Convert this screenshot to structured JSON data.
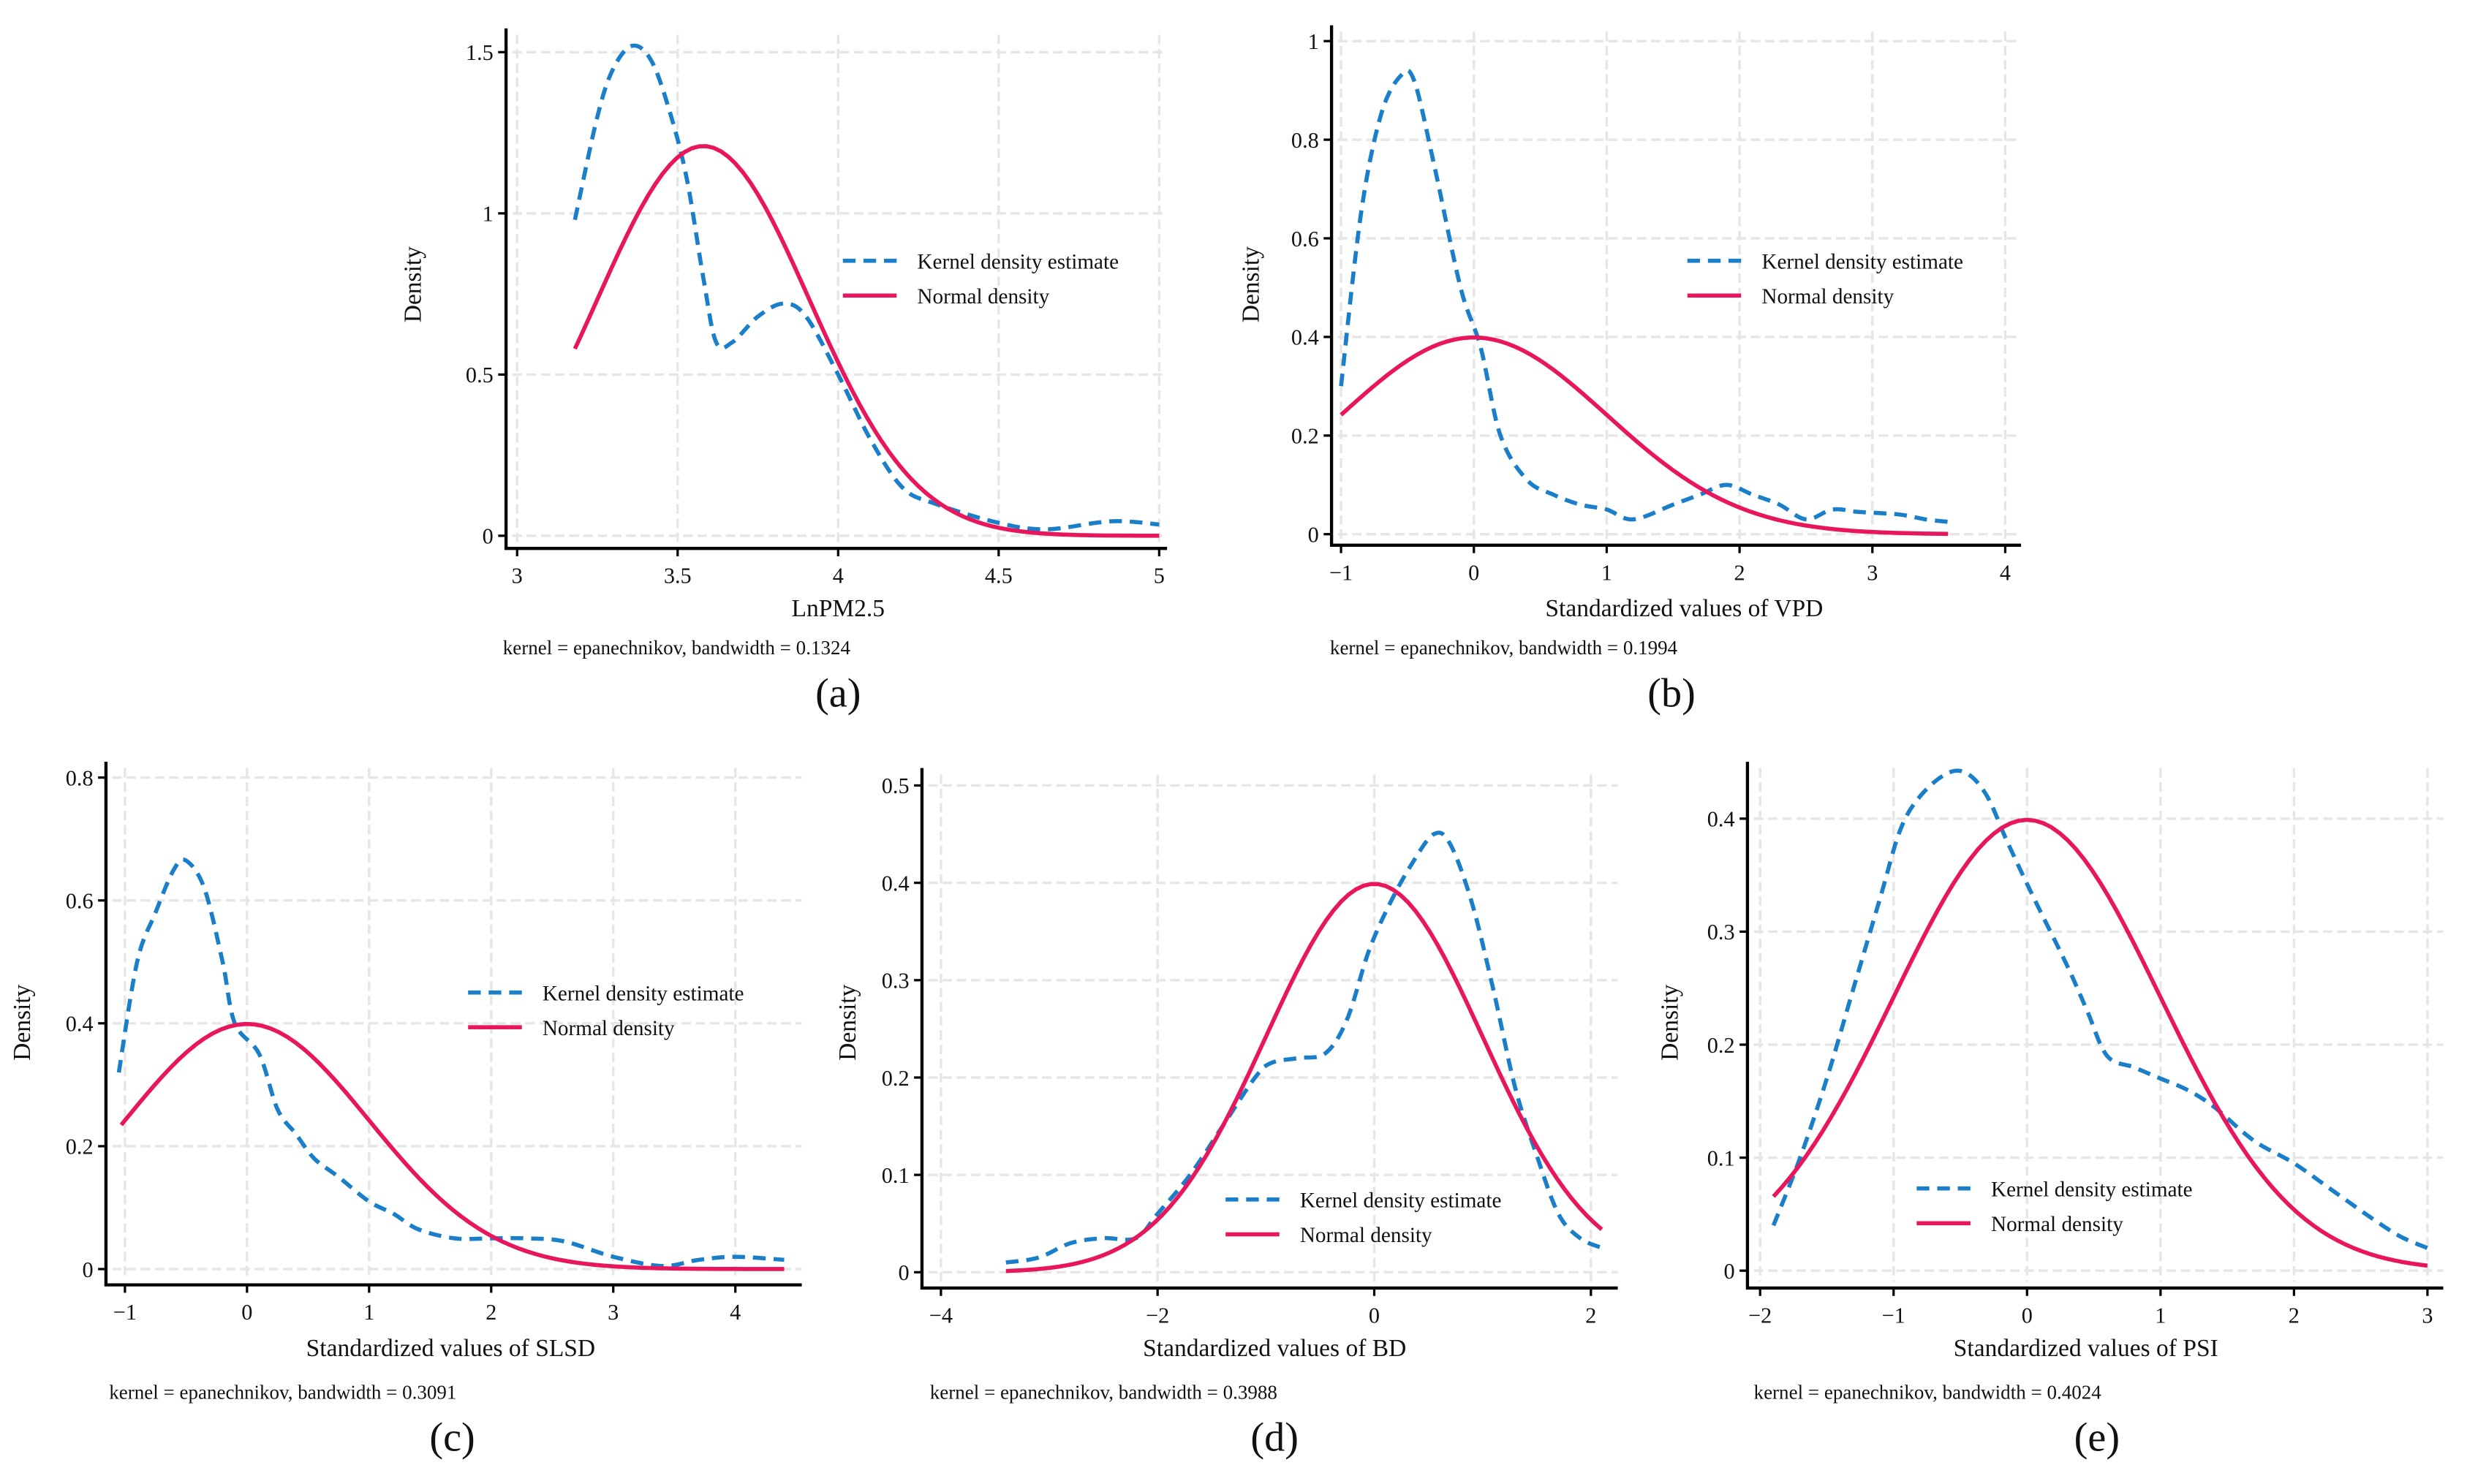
{
  "colors": {
    "kde": "#1a7fc8",
    "normal": "#e8175d",
    "grid": "#e6e6e6"
  },
  "legend": {
    "kde": "Kernel density estimate",
    "normal": "Normal density"
  },
  "chart_data": [
    {
      "id": "a",
      "type": "line",
      "panel_label": "(a)",
      "xlabel": "LnPM2.5",
      "ylabel": "Density",
      "note": "kernel = epanechnikov, bandwidth = 0.1324",
      "xticks": [
        3,
        3.5,
        4,
        4.5,
        5
      ],
      "xtick_labels": [
        "3",
        "3.5",
        "4",
        "4.5",
        "5"
      ],
      "yticks": [
        0,
        0.5,
        1,
        1.5
      ],
      "ytick_labels": [
        "0",
        "0.5",
        "1",
        "1.5"
      ],
      "xlim": [
        3,
        5
      ],
      "ylim": [
        0,
        1.5
      ],
      "legend_placement": "right",
      "series": [
        {
          "name": "Kernel density estimate",
          "style": "dashed",
          "x": [
            3.18,
            3.25,
            3.3,
            3.36,
            3.42,
            3.48,
            3.53,
            3.58,
            3.62,
            3.67,
            3.75,
            3.83,
            3.9,
            4.0,
            4.1,
            4.2,
            4.3,
            4.5,
            4.65,
            4.85,
            5.0
          ],
          "y": [
            0.98,
            1.3,
            1.45,
            1.52,
            1.47,
            1.3,
            1.1,
            0.8,
            0.6,
            0.6,
            0.68,
            0.72,
            0.68,
            0.5,
            0.3,
            0.15,
            0.1,
            0.04,
            0.02,
            0.045,
            0.035
          ]
        },
        {
          "name": "Normal density",
          "style": "solid",
          "mean": 3.58,
          "sd": 0.33,
          "x_range": [
            3.18,
            5.0
          ]
        }
      ]
    },
    {
      "id": "b",
      "type": "line",
      "panel_label": "(b)",
      "xlabel": "Standardized values of VPD",
      "ylabel": "Density",
      "note": "kernel = epanechnikov, bandwidth = 0.1994",
      "xticks": [
        -1,
        0,
        1,
        2,
        3,
        4
      ],
      "xtick_labels": [
        "−1",
        "0",
        "1",
        "2",
        "3",
        "4"
      ],
      "yticks": [
        0,
        0.2,
        0.4,
        0.6,
        0.8,
        1
      ],
      "ytick_labels": [
        "0",
        "0.2",
        "0.4",
        "0.6",
        "0.8",
        "1"
      ],
      "xlim": [
        -1,
        4
      ],
      "ylim": [
        0,
        1
      ],
      "legend_placement": "right",
      "series": [
        {
          "name": "Kernel density estimate",
          "style": "dashed",
          "x": [
            -1,
            -0.85,
            -0.7,
            -0.55,
            -0.45,
            -0.3,
            -0.1,
            0.05,
            0.2,
            0.4,
            0.6,
            0.8,
            1.0,
            1.2,
            1.5,
            1.7,
            1.9,
            2.1,
            2.3,
            2.5,
            2.7,
            2.9,
            3.2,
            3.4,
            3.57
          ],
          "y": [
            0.3,
            0.65,
            0.85,
            0.93,
            0.92,
            0.75,
            0.5,
            0.38,
            0.2,
            0.11,
            0.08,
            0.06,
            0.05,
            0.03,
            0.06,
            0.08,
            0.1,
            0.08,
            0.06,
            0.03,
            0.05,
            0.045,
            0.04,
            0.03,
            0.025
          ]
        },
        {
          "name": "Normal density",
          "style": "solid",
          "mean": 0,
          "sd": 1,
          "x_range": [
            -1,
            3.57
          ]
        }
      ]
    },
    {
      "id": "c",
      "type": "line",
      "panel_label": "(c)",
      "xlabel": "Standardized values of SLSD",
      "ylabel": "Density",
      "note": "kernel = epanechnikov, bandwidth = 0.3091",
      "xticks": [
        -1,
        0,
        1,
        2,
        3,
        4
      ],
      "xtick_labels": [
        "−1",
        "0",
        "1",
        "2",
        "3",
        "4"
      ],
      "yticks": [
        0,
        0.2,
        0.4,
        0.6,
        0.8
      ],
      "ytick_labels": [
        "0",
        "0.2",
        "0.4",
        "0.6",
        "0.8"
      ],
      "xlim": [
        -1,
        4.4
      ],
      "ylim": [
        0,
        0.8
      ],
      "legend_placement": "right",
      "series": [
        {
          "name": "Kernel density estimate",
          "style": "dashed",
          "x": [
            -1.05,
            -0.9,
            -0.75,
            -0.6,
            -0.5,
            -0.35,
            -0.2,
            -0.1,
            0.1,
            0.25,
            0.4,
            0.55,
            0.75,
            1.0,
            1.2,
            1.4,
            1.7,
            2.0,
            2.3,
            2.6,
            3.0,
            3.4,
            3.7,
            4.0,
            4.4
          ],
          "y": [
            0.32,
            0.5,
            0.58,
            0.65,
            0.665,
            0.62,
            0.5,
            0.4,
            0.35,
            0.26,
            0.22,
            0.18,
            0.15,
            0.11,
            0.09,
            0.065,
            0.05,
            0.05,
            0.05,
            0.045,
            0.02,
            0.005,
            0.015,
            0.02,
            0.015
          ]
        },
        {
          "name": "Normal density",
          "style": "solid",
          "mean": 0,
          "sd": 1,
          "x_range": [
            -1.03,
            4.4
          ]
        }
      ]
    },
    {
      "id": "d",
      "type": "line",
      "panel_label": "(d)",
      "xlabel": "Standardized values of BD",
      "ylabel": "Density",
      "note": "kernel = epanechnikov, bandwidth = 0.3988",
      "xticks": [
        -4,
        -2,
        0,
        2
      ],
      "xtick_labels": [
        "−4",
        "−2",
        "0",
        "2"
      ],
      "yticks": [
        0,
        0.1,
        0.2,
        0.3,
        0.4,
        0.5
      ],
      "ytick_labels": [
        "0",
        "0.1",
        "0.2",
        "0.3",
        "0.4",
        "0.5"
      ],
      "xlim": [
        -4,
        2.1
      ],
      "ylim": [
        0,
        0.5
      ],
      "legend_placement": "bottom-right",
      "series": [
        {
          "name": "Kernel density estimate",
          "style": "dashed",
          "x": [
            -3.4,
            -3.1,
            -2.8,
            -2.5,
            -2.2,
            -2.0,
            -1.7,
            -1.4,
            -1.1,
            -0.95,
            -0.7,
            -0.45,
            -0.25,
            -0.05,
            0.15,
            0.35,
            0.55,
            0.7,
            0.9,
            1.1,
            1.3,
            1.5,
            1.7,
            1.9,
            2.1
          ],
          "y": [
            0.01,
            0.015,
            0.03,
            0.035,
            0.035,
            0.06,
            0.1,
            0.15,
            0.2,
            0.215,
            0.22,
            0.225,
            0.26,
            0.33,
            0.38,
            0.42,
            0.45,
            0.44,
            0.38,
            0.29,
            0.19,
            0.12,
            0.06,
            0.035,
            0.025
          ]
        },
        {
          "name": "Normal density",
          "style": "solid",
          "mean": 0,
          "sd": 1,
          "x_range": [
            -3.4,
            2.1
          ]
        }
      ]
    },
    {
      "id": "e",
      "type": "line",
      "panel_label": "(e)",
      "xlabel": "Standardized values of PSI",
      "ylabel": "Density",
      "note": "kernel = epanechnikov, bandwidth = 0.4024",
      "xticks": [
        -2,
        -1,
        0,
        1,
        2,
        3
      ],
      "xtick_labels": [
        "−2",
        "−1",
        "0",
        "1",
        "2",
        "3"
      ],
      "yticks": [
        0,
        0.1,
        0.2,
        0.3,
        0.4
      ],
      "ytick_labels": [
        "0",
        "0.1",
        "0.2",
        "0.3",
        "0.4"
      ],
      "xlim": [
        -2,
        3
      ],
      "ylim": [
        0,
        0.44
      ],
      "legend_placement": "bottom-center",
      "series": [
        {
          "name": "Kernel density estimate",
          "style": "dashed",
          "x": [
            -1.9,
            -1.7,
            -1.5,
            -1.3,
            -1.1,
            -0.95,
            -0.8,
            -0.6,
            -0.45,
            -0.3,
            -0.15,
            0.05,
            0.3,
            0.45,
            0.6,
            0.8,
            1.0,
            1.2,
            1.4,
            1.7,
            2.0,
            2.3,
            2.6,
            2.8,
            3.0
          ],
          "y": [
            0.04,
            0.1,
            0.17,
            0.25,
            0.33,
            0.39,
            0.42,
            0.44,
            0.44,
            0.42,
            0.38,
            0.33,
            0.27,
            0.23,
            0.19,
            0.18,
            0.17,
            0.16,
            0.145,
            0.115,
            0.095,
            0.07,
            0.045,
            0.03,
            0.02
          ]
        },
        {
          "name": "Normal density",
          "style": "solid",
          "mean": 0,
          "sd": 1,
          "x_range": [
            -1.9,
            3.0
          ]
        }
      ]
    }
  ]
}
